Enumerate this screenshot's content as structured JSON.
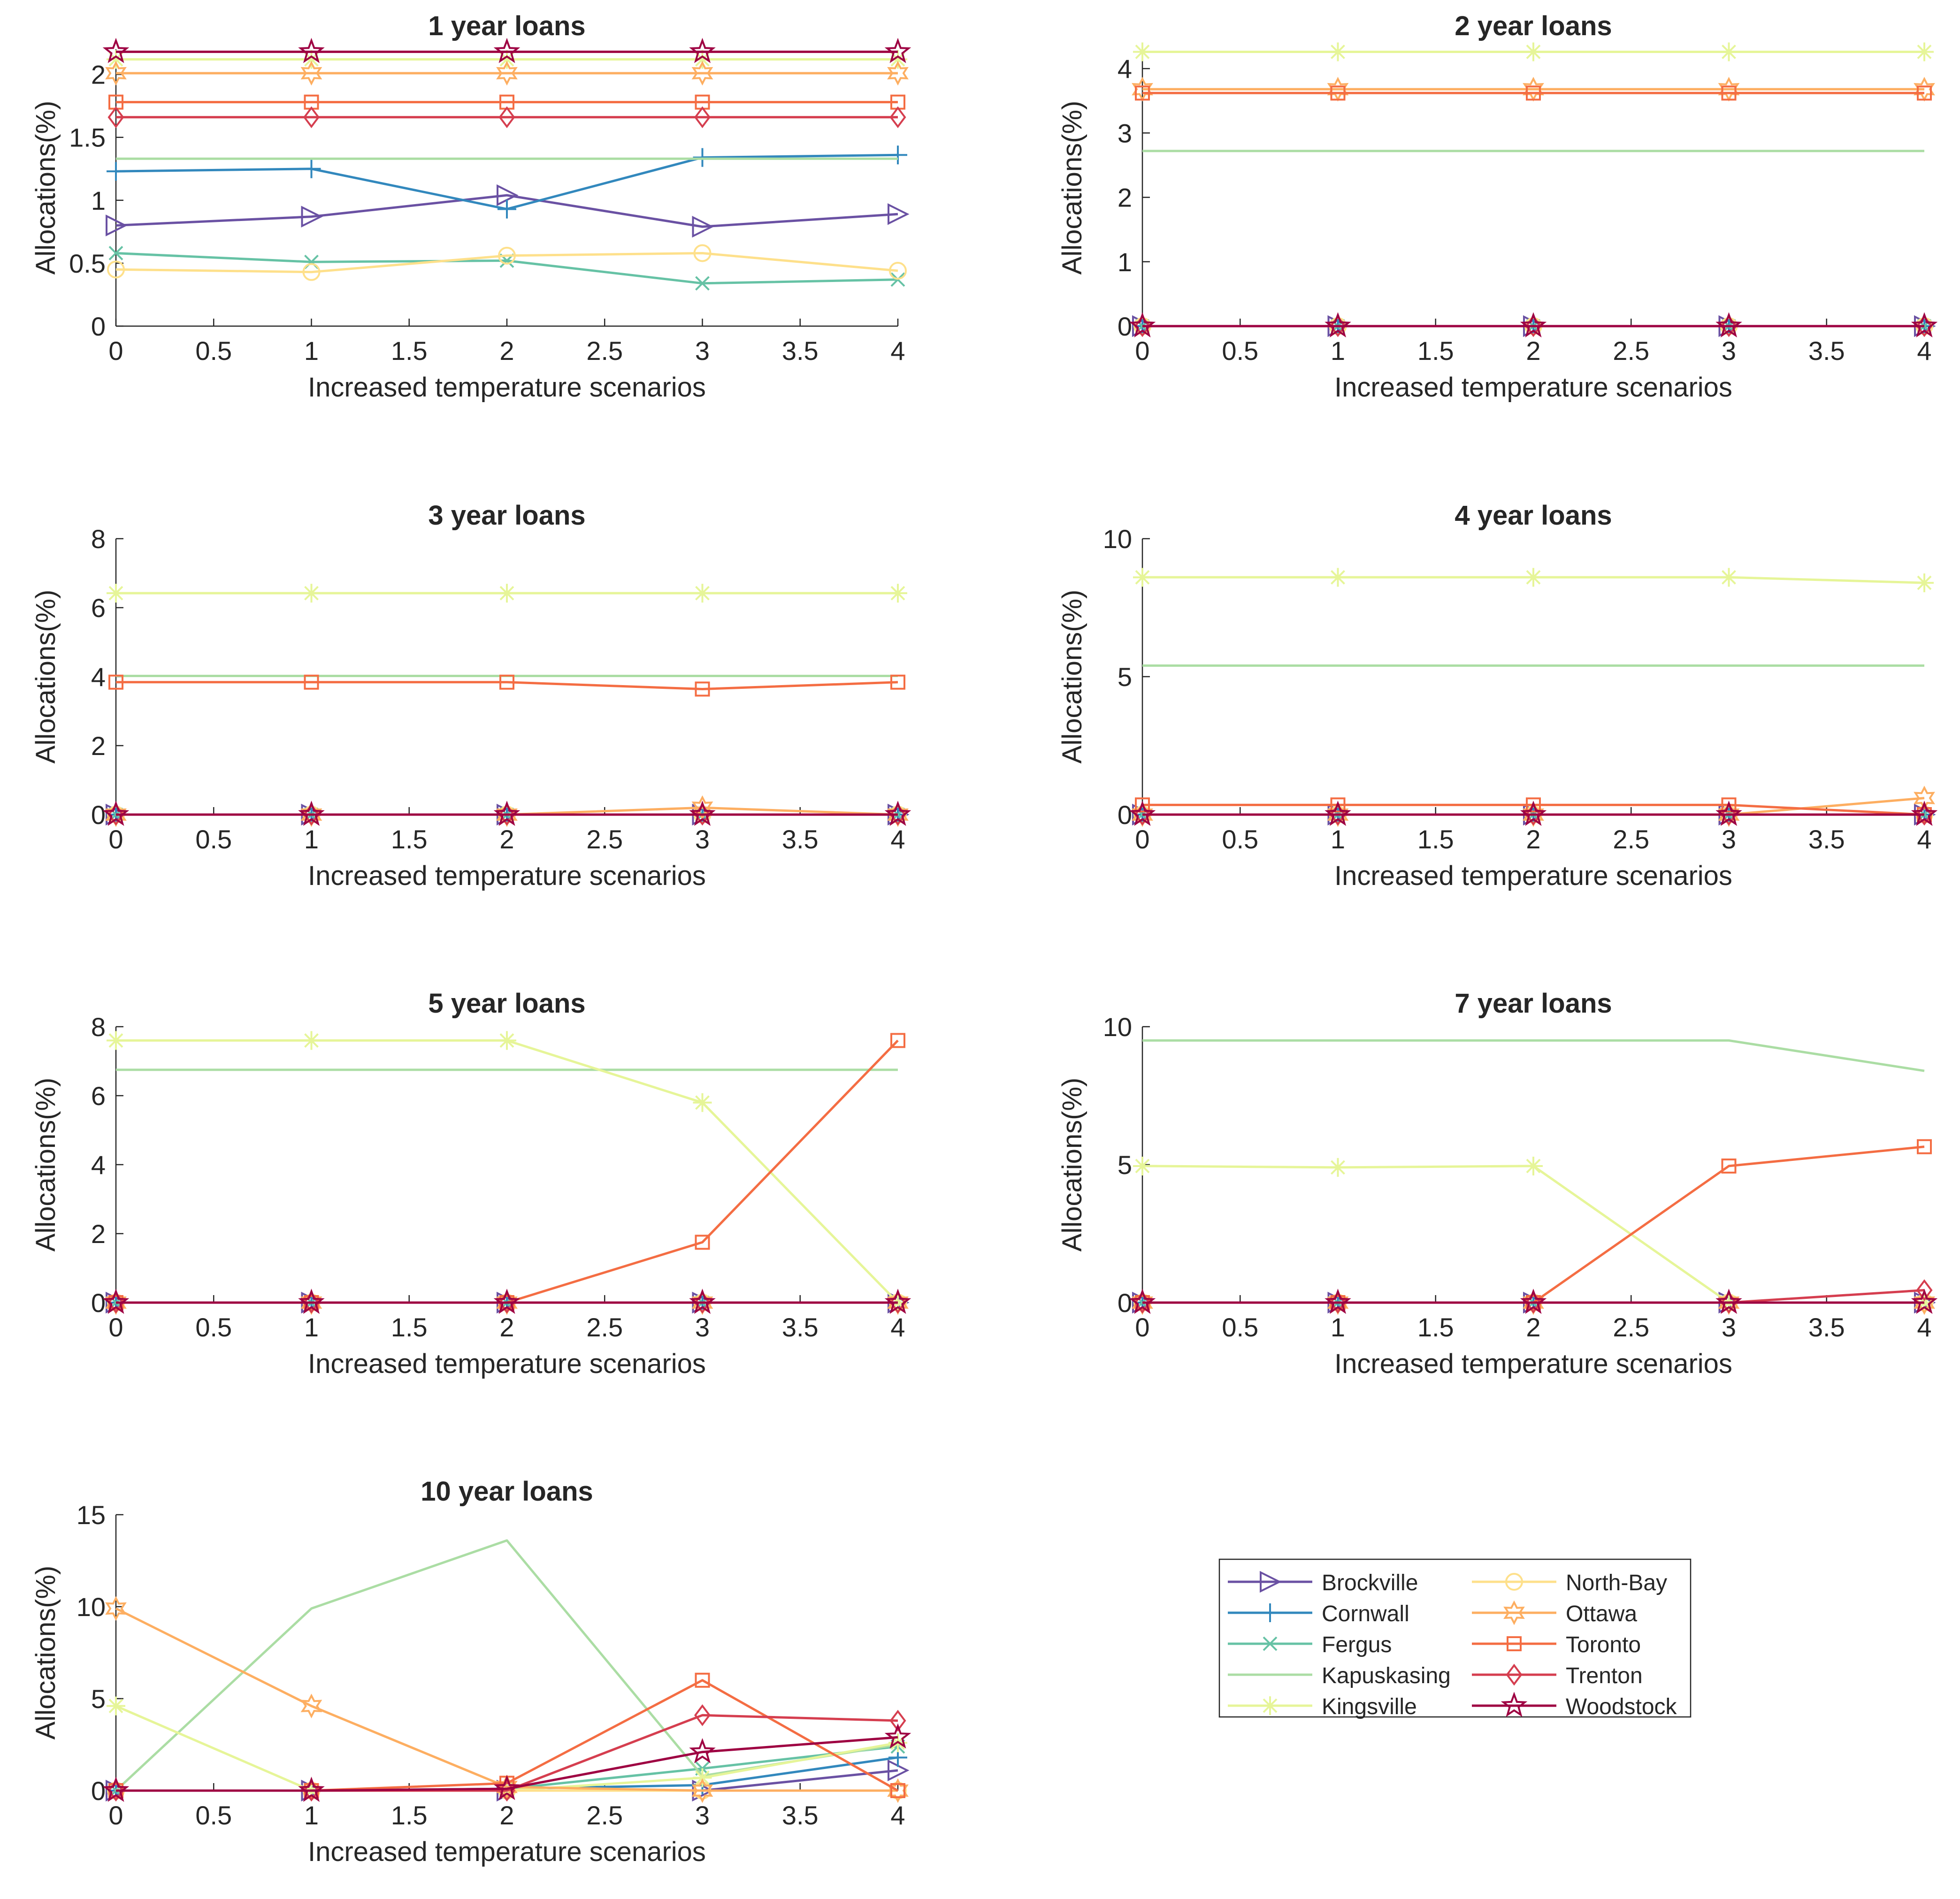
{
  "figure": {
    "background": "#ffffff"
  },
  "series_styles": [
    {
      "name": "Brockville",
      "color": "#6a51a3",
      "marker": "triangle-right"
    },
    {
      "name": "Cornwall",
      "color": "#3288bd",
      "marker": "plus"
    },
    {
      "name": "Fergus",
      "color": "#66c2a5",
      "marker": "x"
    },
    {
      "name": "Kapuskasing",
      "color": "#abdda4",
      "marker": "none"
    },
    {
      "name": "Kingsville",
      "color": "#e6f598",
      "marker": "asterisk"
    },
    {
      "name": "North-Bay",
      "color": "#fee08b",
      "marker": "circle"
    },
    {
      "name": "Ottawa",
      "color": "#fdae61",
      "marker": "hexagram"
    },
    {
      "name": "Toronto",
      "color": "#f46d43",
      "marker": "square"
    },
    {
      "name": "Trenton",
      "color": "#d53e4f",
      "marker": "diamond"
    },
    {
      "name": "Woodstock",
      "color": "#9e0142",
      "marker": "pentagram"
    }
  ],
  "legend": {
    "location": "lower-right",
    "entries": [
      "Brockville",
      "Cornwall",
      "Fergus",
      "Kapuskasing",
      "Kingsville",
      "North-Bay",
      "Ottawa",
      "Toronto",
      "Trenton",
      "Woodstock"
    ]
  },
  "chart_data": [
    {
      "type": "line",
      "title": "1 year loans",
      "xlabel": "Increased temperature scenarios",
      "ylabel": "Allocations(%)",
      "xlim": [
        0,
        4
      ],
      "ylim": [
        0,
        2.2
      ],
      "xticks": [
        0,
        0.5,
        1,
        1.5,
        2,
        2.5,
        3,
        3.5,
        4
      ],
      "xtick_labels": [
        "0",
        "0.5",
        "1",
        "1.5",
        "2",
        "2.5",
        "3",
        "3.5",
        "4"
      ],
      "yticks": [
        0,
        0.5,
        1,
        1.5,
        2
      ],
      "ytick_labels": [
        "0",
        "0.5",
        "1",
        "1.5",
        "2"
      ],
      "x": [
        0,
        1,
        2,
        3,
        4
      ],
      "series": [
        {
          "name": "Brockville",
          "values": [
            0.8,
            0.87,
            1.04,
            0.79,
            0.89
          ]
        },
        {
          "name": "Cornwall",
          "values": [
            1.23,
            1.25,
            0.93,
            1.34,
            1.36
          ]
        },
        {
          "name": "Fergus",
          "values": [
            0.58,
            0.51,
            0.52,
            0.34,
            0.37
          ]
        },
        {
          "name": "Kapuskasing",
          "values": [
            1.33,
            1.33,
            1.33,
            1.33,
            1.33
          ]
        },
        {
          "name": "Kingsville",
          "values": [
            2.12,
            2.12,
            2.12,
            2.12,
            2.12
          ]
        },
        {
          "name": "North-Bay",
          "values": [
            0.45,
            0.43,
            0.56,
            0.58,
            0.44
          ]
        },
        {
          "name": "Ottawa",
          "values": [
            2.01,
            2.01,
            2.01,
            2.01,
            2.01
          ]
        },
        {
          "name": "Toronto",
          "values": [
            1.78,
            1.78,
            1.78,
            1.78,
            1.78
          ]
        },
        {
          "name": "Trenton",
          "values": [
            1.66,
            1.66,
            1.66,
            1.66,
            1.66
          ]
        },
        {
          "name": "Woodstock",
          "values": [
            2.18,
            2.18,
            2.18,
            2.18,
            2.18
          ]
        }
      ]
    },
    {
      "type": "line",
      "title": "2 year loans",
      "xlabel": "Increased temperature scenarios",
      "ylabel": "Allocations(%)",
      "xlim": [
        0,
        4
      ],
      "ylim": [
        0,
        4.3
      ],
      "xticks": [
        0,
        0.5,
        1,
        1.5,
        2,
        2.5,
        3,
        3.5,
        4
      ],
      "xtick_labels": [
        "0",
        "0.5",
        "1",
        "1.5",
        "2",
        "2.5",
        "3",
        "3.5",
        "4"
      ],
      "yticks": [
        0,
        1,
        2,
        3,
        4
      ],
      "ytick_labels": [
        "0",
        "1",
        "2",
        "3",
        "4"
      ],
      "x": [
        0,
        1,
        2,
        3,
        4
      ],
      "series": [
        {
          "name": "Brockville",
          "values": [
            0,
            0,
            0,
            0,
            0
          ]
        },
        {
          "name": "Cornwall",
          "values": [
            0,
            0,
            0,
            0,
            0
          ]
        },
        {
          "name": "Fergus",
          "values": [
            0,
            0,
            0,
            0,
            0
          ]
        },
        {
          "name": "Kapuskasing",
          "values": [
            2.72,
            2.72,
            2.72,
            2.72,
            2.72
          ]
        },
        {
          "name": "Kingsville",
          "values": [
            4.26,
            4.26,
            4.26,
            4.26,
            4.26
          ]
        },
        {
          "name": "North-Bay",
          "values": [
            0,
            0,
            0,
            0,
            0
          ]
        },
        {
          "name": "Ottawa",
          "values": [
            3.68,
            3.68,
            3.68,
            3.68,
            3.68
          ]
        },
        {
          "name": "Toronto",
          "values": [
            3.62,
            3.62,
            3.62,
            3.62,
            3.62
          ]
        },
        {
          "name": "Trenton",
          "values": [
            0,
            0,
            0,
            0,
            0
          ]
        },
        {
          "name": "Woodstock",
          "values": [
            0,
            0,
            0,
            0,
            0
          ]
        }
      ]
    },
    {
      "type": "line",
      "title": "3 year loans",
      "xlabel": "Increased temperature scenarios",
      "ylabel": "Allocations(%)",
      "xlim": [
        0,
        4
      ],
      "ylim": [
        0,
        8
      ],
      "xticks": [
        0,
        0.5,
        1,
        1.5,
        2,
        2.5,
        3,
        3.5,
        4
      ],
      "xtick_labels": [
        "0",
        "0.5",
        "1",
        "1.5",
        "2",
        "2.5",
        "3",
        "3.5",
        "4"
      ],
      "yticks": [
        0,
        2,
        4,
        6,
        8
      ],
      "ytick_labels": [
        "0",
        "2",
        "4",
        "6",
        "8"
      ],
      "x": [
        0,
        1,
        2,
        3,
        4
      ],
      "series": [
        {
          "name": "Brockville",
          "values": [
            0,
            0,
            0,
            0,
            0
          ]
        },
        {
          "name": "Cornwall",
          "values": [
            0,
            0,
            0,
            0,
            0
          ]
        },
        {
          "name": "Fergus",
          "values": [
            0,
            0,
            0,
            0,
            0
          ]
        },
        {
          "name": "Kapuskasing",
          "values": [
            4.02,
            4.02,
            4.02,
            4.02,
            4.02
          ]
        },
        {
          "name": "Kingsville",
          "values": [
            6.42,
            6.42,
            6.42,
            6.42,
            6.42
          ]
        },
        {
          "name": "North-Bay",
          "values": [
            0,
            0,
            0,
            0,
            0
          ]
        },
        {
          "name": "Ottawa",
          "values": [
            0,
            0,
            0,
            0.2,
            0
          ]
        },
        {
          "name": "Toronto",
          "values": [
            3.84,
            3.84,
            3.84,
            3.64,
            3.84
          ]
        },
        {
          "name": "Trenton",
          "values": [
            0,
            0,
            0,
            0,
            0
          ]
        },
        {
          "name": "Woodstock",
          "values": [
            0,
            0,
            0,
            0,
            0
          ]
        }
      ]
    },
    {
      "type": "line",
      "title": "4 year loans",
      "xlabel": "Increased temperature scenarios",
      "ylabel": "Allocations(%)",
      "xlim": [
        0,
        4
      ],
      "ylim": [
        0,
        10
      ],
      "xticks": [
        0,
        0.5,
        1,
        1.5,
        2,
        2.5,
        3,
        3.5,
        4
      ],
      "xtick_labels": [
        "0",
        "0.5",
        "1",
        "1.5",
        "2",
        "2.5",
        "3",
        "3.5",
        "4"
      ],
      "yticks": [
        0,
        5,
        10
      ],
      "ytick_labels": [
        "0",
        "5",
        "10"
      ],
      "x": [
        0,
        1,
        2,
        3,
        4
      ],
      "series": [
        {
          "name": "Brockville",
          "values": [
            0,
            0,
            0,
            0,
            0
          ]
        },
        {
          "name": "Cornwall",
          "values": [
            0,
            0,
            0,
            0,
            0
          ]
        },
        {
          "name": "Fergus",
          "values": [
            0,
            0,
            0,
            0,
            0
          ]
        },
        {
          "name": "Kapuskasing",
          "values": [
            5.4,
            5.4,
            5.4,
            5.4,
            5.4
          ]
        },
        {
          "name": "Kingsville",
          "values": [
            8.6,
            8.6,
            8.6,
            8.6,
            8.4
          ]
        },
        {
          "name": "North-Bay",
          "values": [
            0,
            0,
            0,
            0,
            0
          ]
        },
        {
          "name": "Ottawa",
          "values": [
            0,
            0,
            0,
            0,
            0.6
          ]
        },
        {
          "name": "Toronto",
          "values": [
            0.35,
            0.35,
            0.35,
            0.35,
            0
          ]
        },
        {
          "name": "Trenton",
          "values": [
            0,
            0,
            0,
            0,
            0
          ]
        },
        {
          "name": "Woodstock",
          "values": [
            0,
            0,
            0,
            0,
            0
          ]
        }
      ]
    },
    {
      "type": "line",
      "title": "5 year loans",
      "xlabel": "Increased temperature scenarios",
      "ylabel": "Allocations(%)",
      "xlim": [
        0,
        4
      ],
      "ylim": [
        0,
        8
      ],
      "xticks": [
        0,
        0.5,
        1,
        1.5,
        2,
        2.5,
        3,
        3.5,
        4
      ],
      "xtick_labels": [
        "0",
        "0.5",
        "1",
        "1.5",
        "2",
        "2.5",
        "3",
        "3.5",
        "4"
      ],
      "yticks": [
        0,
        2,
        4,
        6,
        8
      ],
      "ytick_labels": [
        "0",
        "2",
        "4",
        "6",
        "8"
      ],
      "x": [
        0,
        1,
        2,
        3,
        4
      ],
      "series": [
        {
          "name": "Brockville",
          "values": [
            0,
            0,
            0,
            0,
            0
          ]
        },
        {
          "name": "Cornwall",
          "values": [
            0,
            0,
            0,
            0,
            0
          ]
        },
        {
          "name": "Fergus",
          "values": [
            0,
            0,
            0,
            0,
            0
          ]
        },
        {
          "name": "Kapuskasing",
          "values": [
            6.75,
            6.75,
            6.75,
            6.75,
            6.75
          ]
        },
        {
          "name": "Kingsville",
          "values": [
            7.6,
            7.6,
            7.6,
            5.8,
            0
          ]
        },
        {
          "name": "North-Bay",
          "values": [
            0,
            0,
            0,
            0,
            0
          ]
        },
        {
          "name": "Ottawa",
          "values": [
            0,
            0,
            0,
            0,
            0
          ]
        },
        {
          "name": "Toronto",
          "values": [
            0,
            0,
            0,
            1.75,
            7.6
          ]
        },
        {
          "name": "Trenton",
          "values": [
            0,
            0,
            0,
            0,
            0
          ]
        },
        {
          "name": "Woodstock",
          "values": [
            0,
            0,
            0,
            0,
            0
          ]
        }
      ]
    },
    {
      "type": "line",
      "title": "7 year loans",
      "xlabel": "Increased temperature scenarios",
      "ylabel": "Allocations(%)",
      "xlim": [
        0,
        4
      ],
      "ylim": [
        0,
        10
      ],
      "xticks": [
        0,
        0.5,
        1,
        1.5,
        2,
        2.5,
        3,
        3.5,
        4
      ],
      "xtick_labels": [
        "0",
        "0.5",
        "1",
        "1.5",
        "2",
        "2.5",
        "3",
        "3.5",
        "4"
      ],
      "yticks": [
        0,
        5,
        10
      ],
      "ytick_labels": [
        "0",
        "5",
        "10"
      ],
      "x": [
        0,
        1,
        2,
        3,
        4
      ],
      "series": [
        {
          "name": "Brockville",
          "values": [
            0,
            0,
            0,
            0,
            0
          ]
        },
        {
          "name": "Cornwall",
          "values": [
            0,
            0,
            0,
            0,
            0
          ]
        },
        {
          "name": "Fergus",
          "values": [
            0,
            0,
            0,
            0,
            0
          ]
        },
        {
          "name": "Kapuskasing",
          "values": [
            9.5,
            9.5,
            9.5,
            9.5,
            8.4
          ]
        },
        {
          "name": "Kingsville",
          "values": [
            4.95,
            4.9,
            4.95,
            0,
            0
          ]
        },
        {
          "name": "North-Bay",
          "values": [
            0,
            0,
            0,
            0,
            0
          ]
        },
        {
          "name": "Ottawa",
          "values": [
            0,
            0,
            0,
            0,
            0
          ]
        },
        {
          "name": "Toronto",
          "values": [
            0,
            0,
            0,
            4.95,
            5.65
          ]
        },
        {
          "name": "Trenton",
          "values": [
            0,
            0,
            0,
            0,
            0.45
          ]
        },
        {
          "name": "Woodstock",
          "values": [
            0,
            0,
            0,
            0,
            0
          ]
        }
      ]
    },
    {
      "type": "line",
      "title": "10 year loans",
      "xlabel": "Increased temperature scenarios",
      "ylabel": "Allocations(%)",
      "xlim": [
        0,
        4
      ],
      "ylim": [
        0,
        15
      ],
      "xticks": [
        0,
        0.5,
        1,
        1.5,
        2,
        2.5,
        3,
        3.5,
        4
      ],
      "xtick_labels": [
        "0",
        "0.5",
        "1",
        "1.5",
        "2",
        "2.5",
        "3",
        "3.5",
        "4"
      ],
      "yticks": [
        0,
        5,
        10,
        15
      ],
      "ytick_labels": [
        "0",
        "5",
        "10",
        "15"
      ],
      "x": [
        0,
        1,
        2,
        3,
        4
      ],
      "series": [
        {
          "name": "Brockville",
          "values": [
            0,
            0,
            0,
            0,
            1.1
          ]
        },
        {
          "name": "Cornwall",
          "values": [
            0,
            0,
            0.1,
            0.3,
            1.8
          ]
        },
        {
          "name": "Fergus",
          "values": [
            0,
            0,
            0.1,
            1.2,
            2.4
          ]
        },
        {
          "name": "Kapuskasing",
          "values": [
            0,
            9.9,
            13.6,
            0.8,
            2.5
          ]
        },
        {
          "name": "Kingsville",
          "values": [
            4.6,
            0,
            0,
            0.7,
            2.6
          ]
        },
        {
          "name": "North-Bay",
          "values": [
            0,
            0,
            0,
            0,
            0
          ]
        },
        {
          "name": "Ottawa",
          "values": [
            9.9,
            4.6,
            0.2,
            0,
            0
          ]
        },
        {
          "name": "Toronto",
          "values": [
            0,
            0,
            0.4,
            6.0,
            0
          ]
        },
        {
          "name": "Trenton",
          "values": [
            0,
            0,
            0,
            4.1,
            3.8
          ]
        },
        {
          "name": "Woodstock",
          "values": [
            0,
            0,
            0.1,
            2.1,
            2.9
          ]
        }
      ]
    }
  ]
}
